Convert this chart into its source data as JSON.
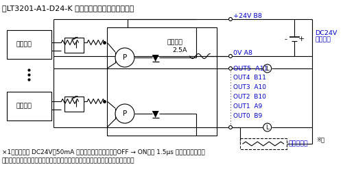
{
  "title": "・LT3201-A1-D24-K 出力部回路（シンクタイプ）",
  "footnote_line1": "×1（例）出力 DC24V、50mA 時では、出力遅延時間（OFF → ON）は 1.5μs です。応答性を必",
  "footnote_line2": "要とし、負荷が軽い場合は、外部にダミー抗抗を設けて電流を増やしてください",
  "text_color": "#0000cc",
  "line_color": "#000000",
  "bg_color": "#ffffff",
  "font_size": 7.0
}
